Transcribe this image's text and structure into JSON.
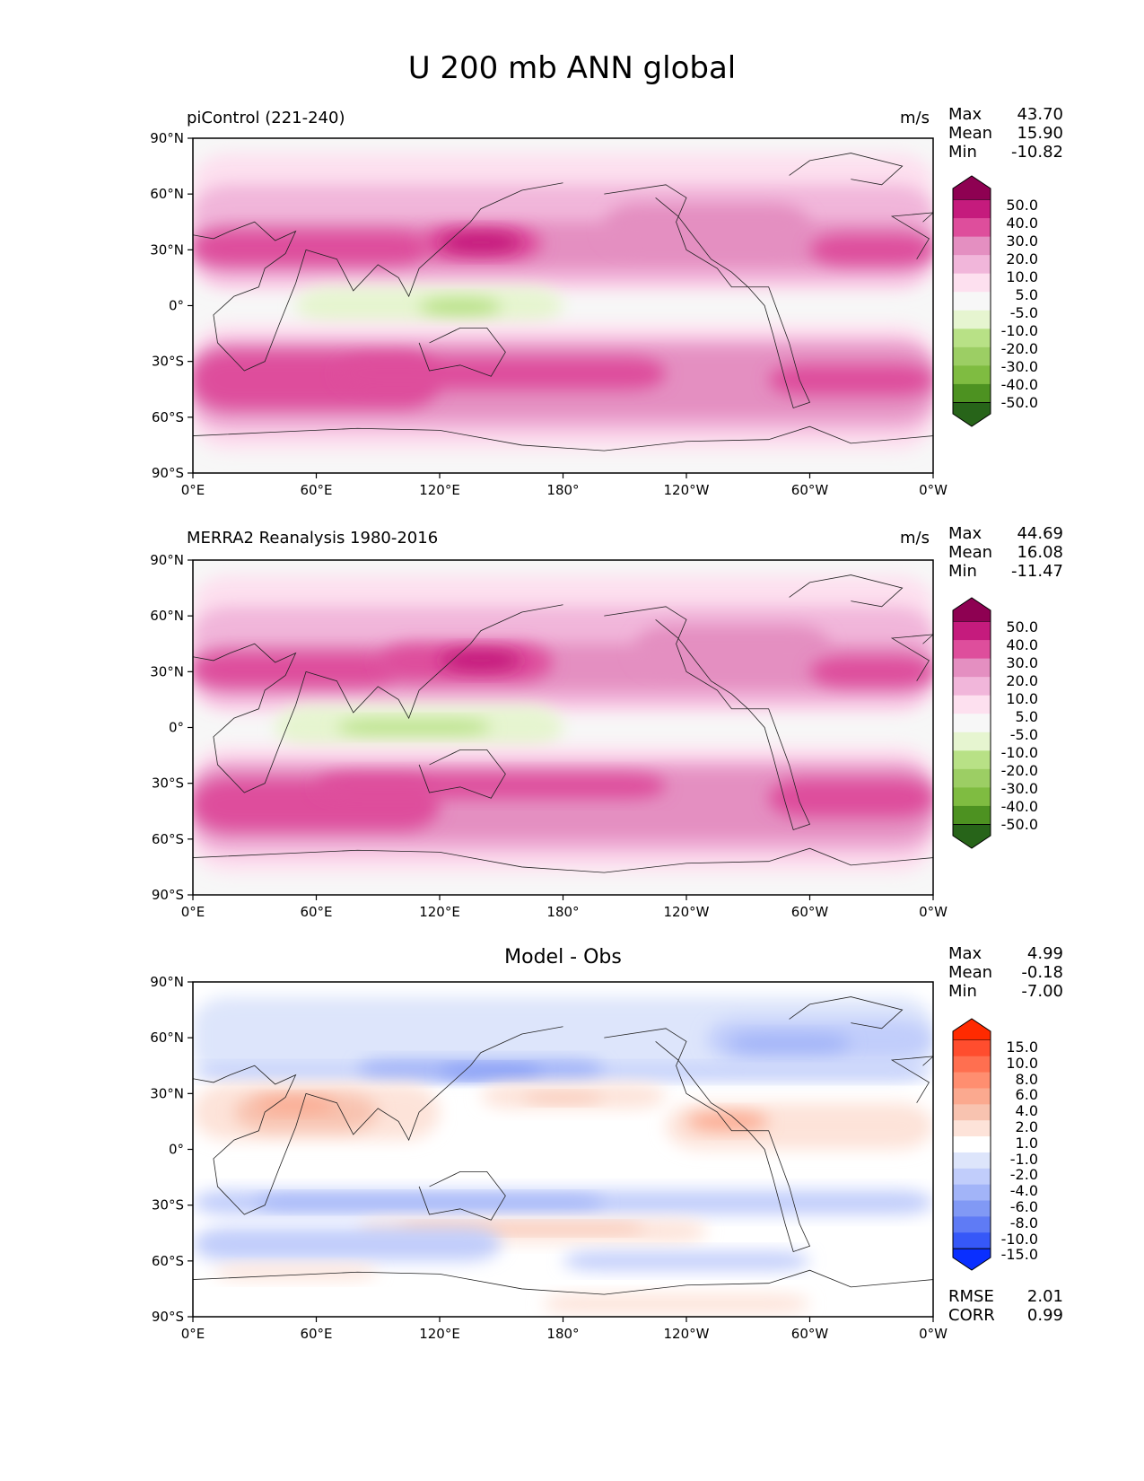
{
  "title": "U 200 mb ANN global",
  "panels": [
    {
      "label": "piControl (221-240)",
      "units": "m/s",
      "stats": [
        {
          "name": "Max",
          "value": "43.70"
        },
        {
          "name": "Mean",
          "value": "15.90"
        },
        {
          "name": "Min",
          "value": "-10.82"
        }
      ]
    },
    {
      "label": "MERRA2 Reanalysis 1980-2016",
      "units": "m/s",
      "stats": [
        {
          "name": "Max",
          "value": "44.69"
        },
        {
          "name": "Mean",
          "value": "16.08"
        },
        {
          "name": "Min",
          "value": "-11.47"
        }
      ]
    },
    {
      "label": "Model - Obs",
      "units": "",
      "stats": [
        {
          "name": "Max",
          "value": "4.99"
        },
        {
          "name": "Mean",
          "value": "-0.18"
        },
        {
          "name": "Min",
          "value": "-7.00"
        }
      ],
      "metrics": [
        {
          "name": "RMSE",
          "value": "2.01"
        },
        {
          "name": "CORR",
          "value": "0.99"
        }
      ]
    }
  ],
  "axes": {
    "x_ticks": [
      "0°E",
      "60°E",
      "120°E",
      "180°",
      "120°W",
      "60°W",
      "0°W"
    ],
    "y_ticks": [
      "90°N",
      "60°N",
      "30°N",
      "0°",
      "30°S",
      "60°S",
      "90°S"
    ]
  },
  "colorbars": {
    "field": {
      "labels": [
        "50.0",
        "40.0",
        "30.0",
        "20.0",
        "10.0",
        "5.0",
        "-5.0",
        "-10.0",
        "-20.0",
        "-30.0",
        "-40.0",
        "-50.0"
      ],
      "colors": [
        "#8e0152",
        "#c51b7d",
        "#de4e9c",
        "#e48fc1",
        "#f1b6da",
        "#fde0ef",
        "#f7f7f7",
        "#e6f5d0",
        "#b8e186",
        "#9cce64",
        "#7fbc41",
        "#4d9221",
        "#276419"
      ]
    },
    "diff": {
      "labels": [
        "15.0",
        "10.0",
        "8.0",
        "6.0",
        "4.0",
        "2.0",
        "1.0",
        "-1.0",
        "-2.0",
        "-4.0",
        "-6.0",
        "-8.0",
        "-10.0",
        "-15.0"
      ],
      "colors": [
        "#ff2a00",
        "#ff4d2e",
        "#ff6f50",
        "#ff8e70",
        "#fba98f",
        "#f8c3b0",
        "#fde3d9",
        "#ffffff",
        "#dde5fb",
        "#c1cdfb",
        "#a2b4f8",
        "#8199f5",
        "#5f7bf5",
        "#3658f8",
        "#0a2fff"
      ]
    }
  },
  "chart_data": [
    {
      "type": "heatmap",
      "title": "piControl (221-240)",
      "units": "m/s",
      "x": "longitude 0°E to 360° (0°W)",
      "y": "latitude 90°S to 90°N",
      "zlim": [
        -10.82,
        43.7
      ],
      "mean": 15.9,
      "contour_levels": [
        -50,
        -40,
        -30,
        -20,
        -10,
        -5,
        5,
        10,
        20,
        30,
        40,
        50
      ]
    },
    {
      "type": "heatmap",
      "title": "MERRA2 Reanalysis 1980-2016",
      "units": "m/s",
      "zlim": [
        -11.47,
        44.69
      ],
      "mean": 16.08,
      "contour_levels": [
        -50,
        -40,
        -30,
        -20,
        -10,
        -5,
        5,
        10,
        20,
        30,
        40,
        50
      ]
    },
    {
      "type": "heatmap",
      "title": "Model - Obs",
      "zlim": [
        -7.0,
        4.99
      ],
      "mean": -0.18,
      "rmse": 2.01,
      "corr": 0.99,
      "contour_levels": [
        -15,
        -10,
        -8,
        -6,
        -4,
        -2,
        -1,
        1,
        2,
        4,
        6,
        8,
        10,
        15
      ]
    }
  ]
}
